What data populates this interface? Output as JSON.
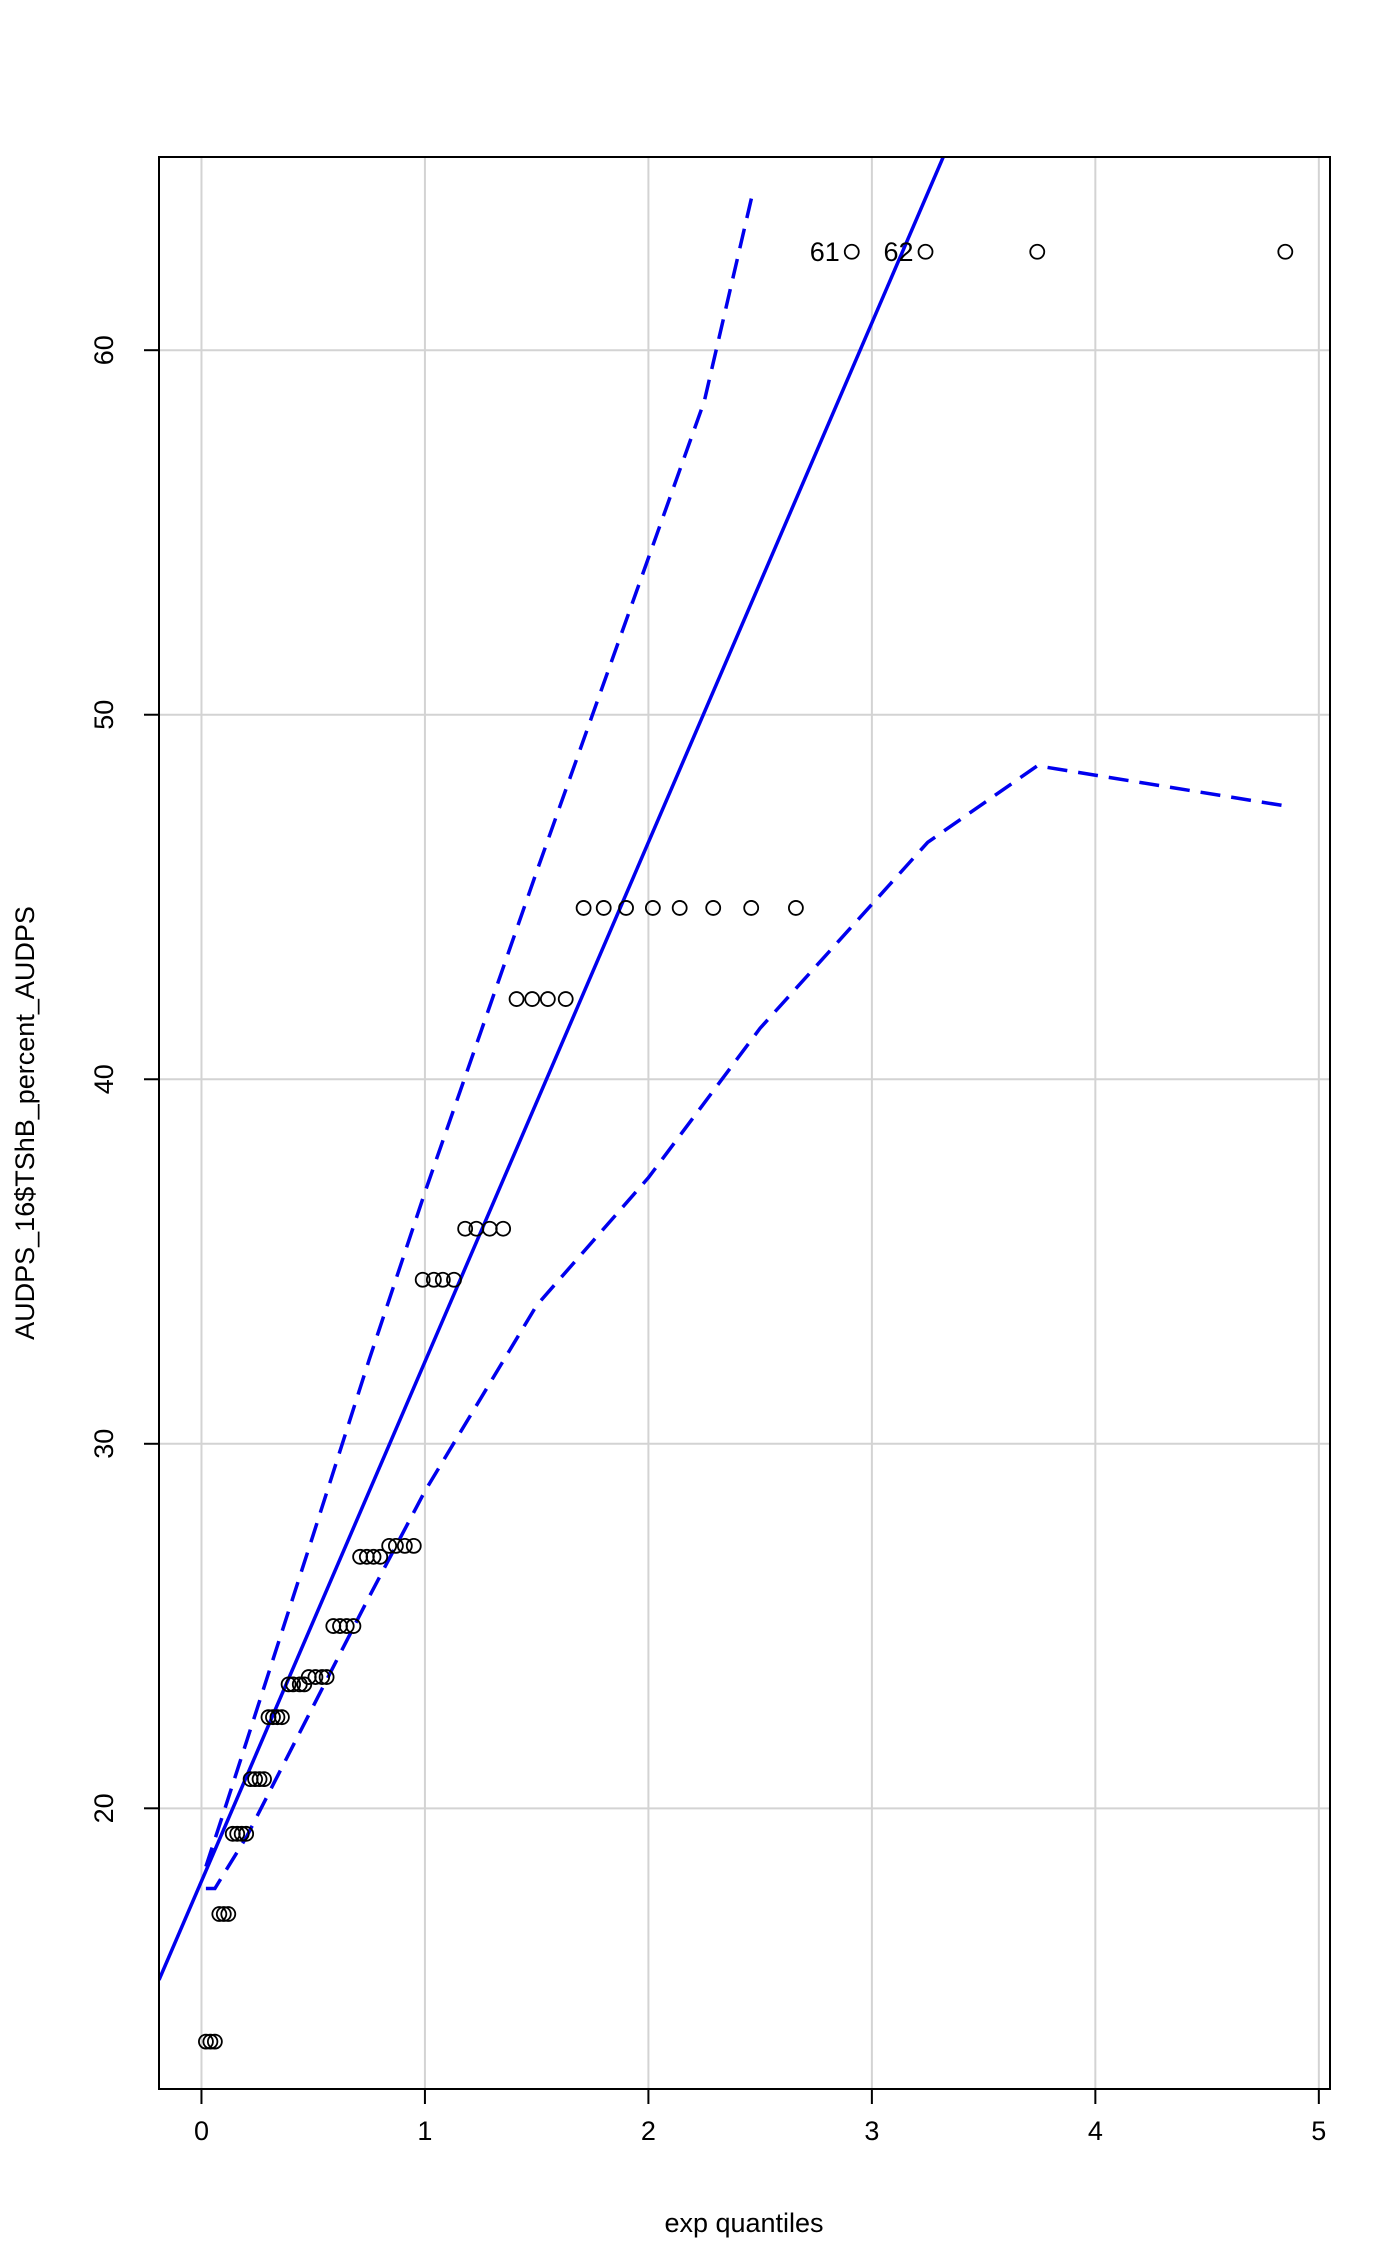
{
  "chart_data": {
    "type": "scatter",
    "title": "",
    "xlabel": "exp quantiles",
    "ylabel": "AUDPS_16$TShB_percent_AUDPS",
    "xlim": [
      -0.19,
      5.05
    ],
    "ylim": [
      12.3,
      65.3
    ],
    "xticks": [
      0,
      1,
      2,
      3,
      4,
      5
    ],
    "yticks": [
      20,
      30,
      40,
      50,
      60
    ],
    "grid": true,
    "colors": {
      "points": "#000000",
      "lines": "#0000ee",
      "grid": "#d3d3d3"
    },
    "points": [
      {
        "x": 0.02,
        "y": 13.6
      },
      {
        "x": 0.04,
        "y": 13.6
      },
      {
        "x": 0.06,
        "y": 13.6
      },
      {
        "x": 0.08,
        "y": 17.1
      },
      {
        "x": 0.1,
        "y": 17.1
      },
      {
        "x": 0.12,
        "y": 17.1
      },
      {
        "x": 0.14,
        "y": 19.3
      },
      {
        "x": 0.16,
        "y": 19.3
      },
      {
        "x": 0.18,
        "y": 19.3
      },
      {
        "x": 0.2,
        "y": 19.3
      },
      {
        "x": 0.22,
        "y": 20.8
      },
      {
        "x": 0.24,
        "y": 20.8
      },
      {
        "x": 0.26,
        "y": 20.8
      },
      {
        "x": 0.28,
        "y": 20.8
      },
      {
        "x": 0.3,
        "y": 22.5
      },
      {
        "x": 0.32,
        "y": 22.5
      },
      {
        "x": 0.34,
        "y": 22.5
      },
      {
        "x": 0.36,
        "y": 22.5
      },
      {
        "x": 0.39,
        "y": 23.4
      },
      {
        "x": 0.41,
        "y": 23.4
      },
      {
        "x": 0.44,
        "y": 23.4
      },
      {
        "x": 0.46,
        "y": 23.4
      },
      {
        "x": 0.48,
        "y": 23.6
      },
      {
        "x": 0.51,
        "y": 23.6
      },
      {
        "x": 0.54,
        "y": 23.6
      },
      {
        "x": 0.56,
        "y": 23.6
      },
      {
        "x": 0.59,
        "y": 25.0
      },
      {
        "x": 0.62,
        "y": 25.0
      },
      {
        "x": 0.65,
        "y": 25.0
      },
      {
        "x": 0.68,
        "y": 25.0
      },
      {
        "x": 0.71,
        "y": 26.9
      },
      {
        "x": 0.74,
        "y": 26.9
      },
      {
        "x": 0.77,
        "y": 26.9
      },
      {
        "x": 0.8,
        "y": 26.9
      },
      {
        "x": 0.84,
        "y": 27.2
      },
      {
        "x": 0.87,
        "y": 27.2
      },
      {
        "x": 0.91,
        "y": 27.2
      },
      {
        "x": 0.95,
        "y": 27.2
      },
      {
        "x": 0.99,
        "y": 34.5
      },
      {
        "x": 1.04,
        "y": 34.5
      },
      {
        "x": 1.08,
        "y": 34.5
      },
      {
        "x": 1.13,
        "y": 34.5
      },
      {
        "x": 1.18,
        "y": 35.9
      },
      {
        "x": 1.23,
        "y": 35.9
      },
      {
        "x": 1.29,
        "y": 35.9
      },
      {
        "x": 1.35,
        "y": 35.9
      },
      {
        "x": 1.41,
        "y": 42.2
      },
      {
        "x": 1.48,
        "y": 42.2
      },
      {
        "x": 1.55,
        "y": 42.2
      },
      {
        "x": 1.63,
        "y": 42.2
      },
      {
        "x": 1.71,
        "y": 44.7
      },
      {
        "x": 1.8,
        "y": 44.7
      },
      {
        "x": 1.9,
        "y": 44.7
      },
      {
        "x": 2.02,
        "y": 44.7
      },
      {
        "x": 2.14,
        "y": 44.7
      },
      {
        "x": 2.29,
        "y": 44.7
      },
      {
        "x": 2.46,
        "y": 44.7
      },
      {
        "x": 2.66,
        "y": 44.7
      },
      {
        "x": 2.91,
        "y": 62.7,
        "label": "61"
      },
      {
        "x": 3.24,
        "y": 62.7,
        "label": "62"
      },
      {
        "x": 3.74,
        "y": 62.7
      },
      {
        "x": 4.85,
        "y": 62.7
      }
    ],
    "fit_line": {
      "intercept": 18.0,
      "slope": 14.25,
      "style": "solid"
    },
    "upper_band": {
      "style": "dashed",
      "x": [
        0.02,
        0.1,
        0.3,
        0.5,
        0.75,
        1.0,
        1.25,
        1.5,
        1.75,
        2.0,
        2.25,
        2.47
      ],
      "y": [
        18.4,
        19.9,
        23.7,
        27.5,
        32.3,
        36.9,
        41.3,
        45.7,
        50.0,
        54.3,
        58.6,
        64.4
      ]
    },
    "lower_band": {
      "style": "dashed",
      "x": [
        0.02,
        0.06,
        0.1,
        0.2,
        0.3,
        0.5,
        0.75,
        1.0,
        1.5,
        2.0,
        2.5,
        3.0,
        3.25,
        3.74,
        4.85
      ],
      "y": [
        17.8,
        17.8,
        18.2,
        19.2,
        20.4,
        22.8,
        25.8,
        28.7,
        33.8,
        37.3,
        41.4,
        44.8,
        46.5,
        48.6,
        47.5
      ]
    }
  }
}
